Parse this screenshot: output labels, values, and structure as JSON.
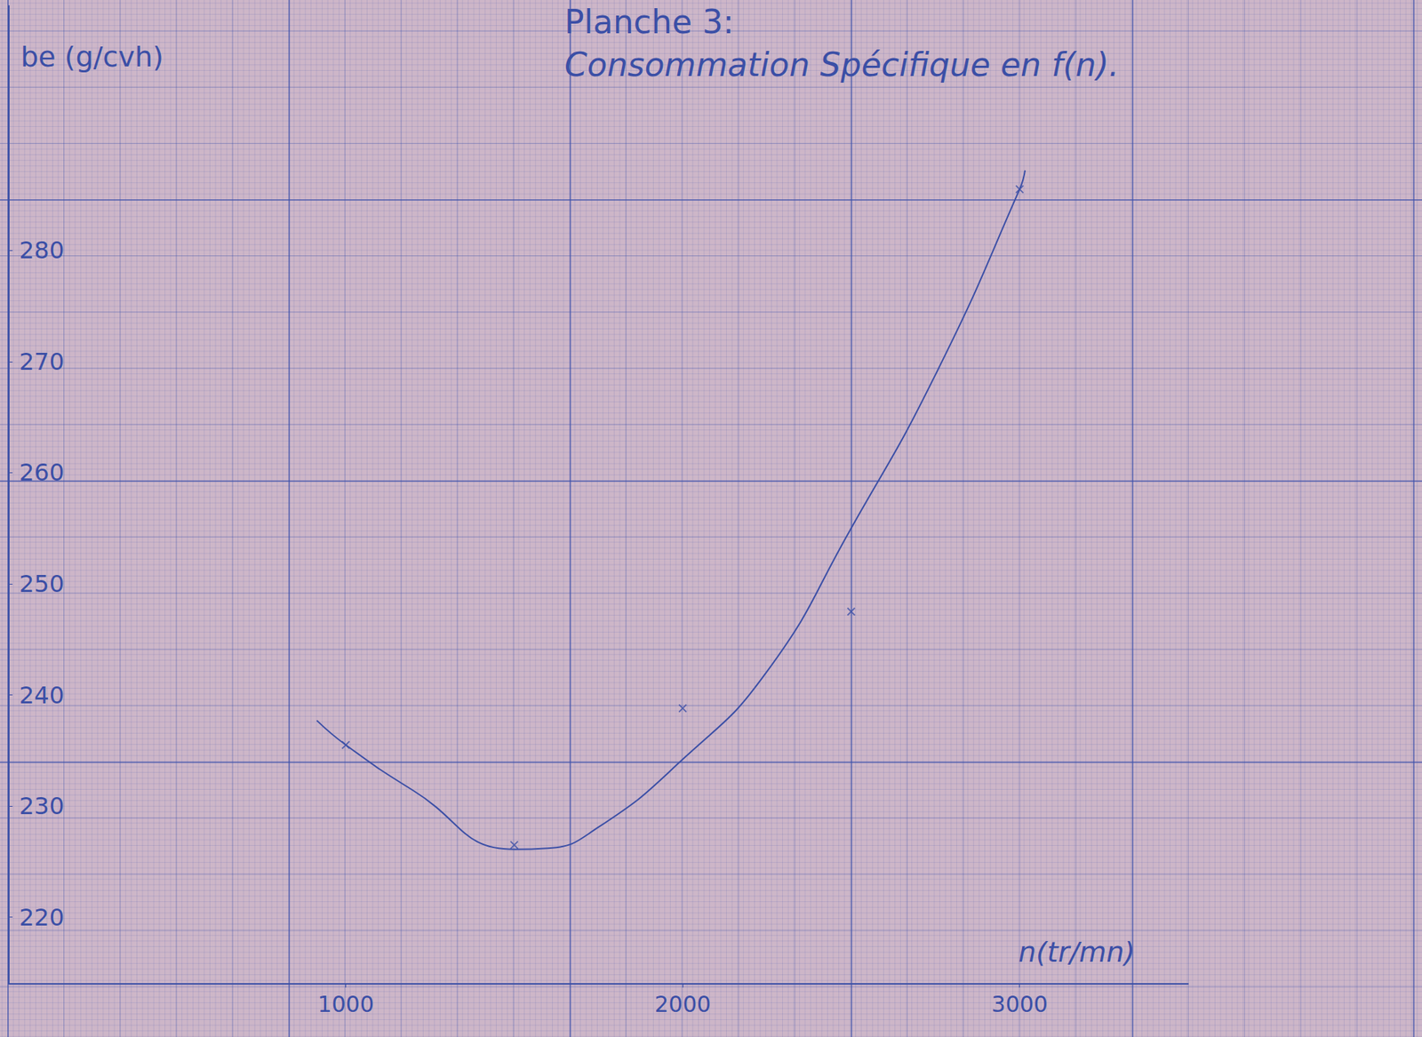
{
  "chart_data": {
    "type": "line",
    "title": "Planche 3:",
    "subtitle": "Consommation Spécifique en f(n).",
    "x_label": "n(tr/mn)",
    "y_label": "be (g/cvh)",
    "xlim": [
      0,
      3500
    ],
    "xticks": [
      1000,
      2000,
      3000
    ],
    "ylim": [
      214,
      302
    ],
    "yticks": [
      220,
      230,
      240,
      250,
      260,
      270,
      280
    ],
    "grid": true,
    "series": [
      {
        "type": "scatter",
        "marker": "x",
        "color": "#3b4fa6",
        "x": [
          1000,
          1500,
          2000,
          2500,
          3000
        ],
        "values": [
          235.5,
          226.5,
          238.8,
          247.5,
          285.5
        ]
      },
      {
        "type": "line",
        "marker": "none",
        "line_style": "solid",
        "color": "#3b4fa6",
        "x": [
          914,
          1000,
          1200,
          1500,
          1600,
          1750,
          2000,
          2250,
          2500,
          2750,
          3000,
          3016
        ],
        "values": [
          237.7,
          235.5,
          231.4,
          226.1,
          226.2,
          228.1,
          234.2,
          242.1,
          255.0,
          268.8,
          285.5,
          287.2
        ]
      }
    ]
  }
}
